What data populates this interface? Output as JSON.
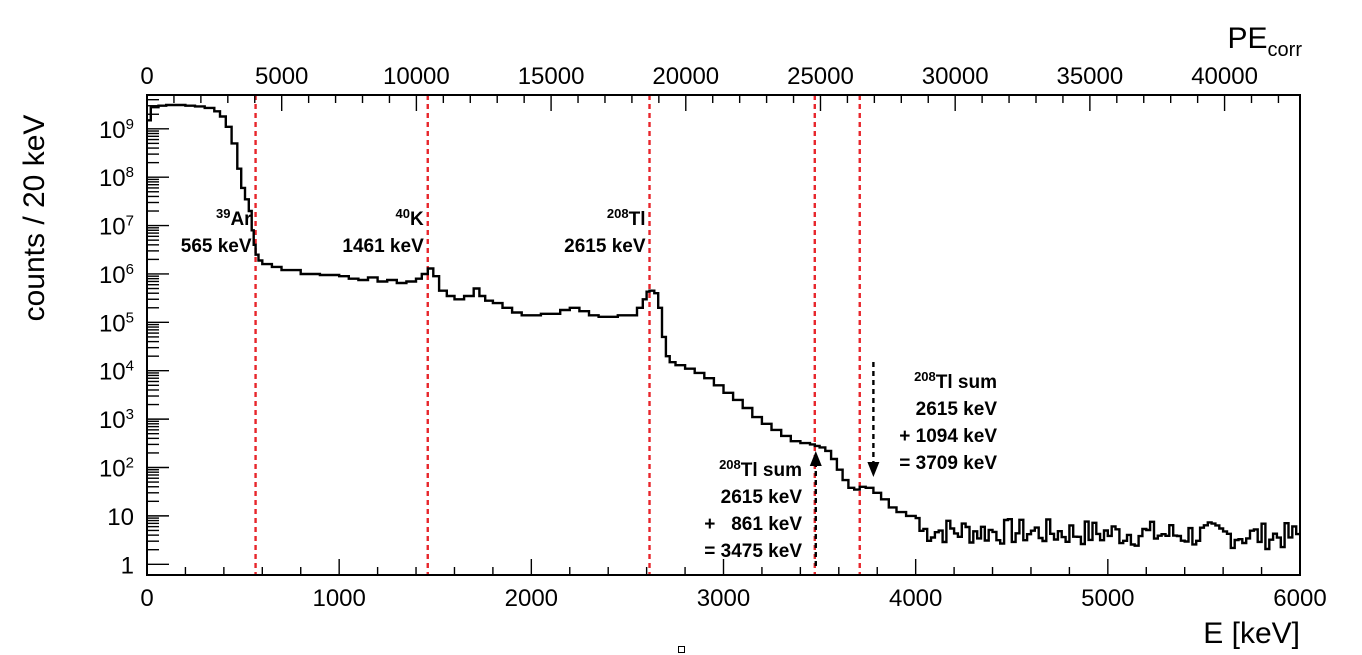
{
  "chart_data": {
    "type": "histogram",
    "ylabel": "counts / 20 keV",
    "xlabel": "E [keV]",
    "x2label": {
      "base": "PE",
      "sub": "corr"
    },
    "xlim": [
      0,
      6000
    ],
    "x2lim": [
      0,
      42800
    ],
    "ylim": [
      0.6,
      5000000000
    ],
    "yscale": "log",
    "x_ticks": [
      0,
      1000,
      2000,
      3000,
      4000,
      5000,
      6000
    ],
    "x2_ticks": [
      0,
      5000,
      10000,
      15000,
      20000,
      25000,
      30000,
      35000,
      40000
    ],
    "y_ticks": [
      {
        "value": 1,
        "label": "1"
      },
      {
        "value": 10,
        "label": "10"
      },
      {
        "value": 100,
        "base": "10",
        "exp": "2"
      },
      {
        "value": 1000,
        "base": "10",
        "exp": "3"
      },
      {
        "value": 10000,
        "base": "10",
        "exp": "4"
      },
      {
        "value": 100000,
        "base": "10",
        "exp": "5"
      },
      {
        "value": 1000000,
        "base": "10",
        "exp": "6"
      },
      {
        "value": 10000000,
        "base": "10",
        "exp": "7"
      },
      {
        "value": 100000000,
        "base": "10",
        "exp": "8"
      },
      {
        "value": 1000000000,
        "base": "10",
        "exp": "9"
      }
    ],
    "reference_lines_keV": [
      565,
      1461,
      2615,
      3475,
      3709
    ],
    "spectrum": {
      "x_keV": [
        0,
        20,
        60,
        100,
        150,
        200,
        250,
        300,
        350,
        380,
        410,
        440,
        470,
        490,
        510,
        530,
        545,
        555,
        565,
        580,
        600,
        650,
        700,
        800,
        900,
        1000,
        1050,
        1100,
        1150,
        1200,
        1250,
        1300,
        1350,
        1400,
        1430,
        1461,
        1490,
        1520,
        1560,
        1600,
        1650,
        1700,
        1730,
        1760,
        1800,
        1850,
        1900,
        1950,
        2000,
        2050,
        2100,
        2150,
        2200,
        2250,
        2300,
        2350,
        2400,
        2450,
        2500,
        2550,
        2580,
        2600,
        2615,
        2640,
        2660,
        2680,
        2700,
        2720,
        2750,
        2800,
        2850,
        2900,
        2950,
        3000,
        3050,
        3100,
        3150,
        3200,
        3250,
        3300,
        3350,
        3400,
        3450,
        3475,
        3500,
        3530,
        3560,
        3590,
        3620,
        3650,
        3680,
        3709,
        3740,
        3780,
        3820,
        3860,
        3900,
        3950,
        4000
      ],
      "counts": [
        1500000000,
        2800000000,
        3000000000,
        3100000000,
        3100000000,
        3000000000,
        2900000000,
        2700000000,
        2300000000,
        1800000000,
        1100000000,
        500000000,
        150000000,
        60000000,
        35000000,
        20000000,
        8000000,
        4000000,
        2500000,
        1900000,
        1600000,
        1400000,
        1200000,
        1000000,
        950000,
        900000,
        800000,
        750000,
        850000,
        700000,
        750000,
        650000,
        700000,
        800000,
        1000000,
        1300000,
        900000,
        450000,
        350000,
        300000,
        350000,
        500000,
        350000,
        280000,
        250000,
        200000,
        160000,
        140000,
        140000,
        150000,
        150000,
        180000,
        200000,
        170000,
        140000,
        130000,
        130000,
        140000,
        140000,
        200000,
        300000,
        430000,
        450000,
        400000,
        200000,
        50000,
        20000,
        15000,
        13000,
        11000,
        9000,
        7000,
        5000,
        3500,
        2500,
        1700,
        1100,
        800,
        600,
        450,
        350,
        320,
        300,
        280,
        260,
        220,
        150,
        90,
        55,
        38,
        35,
        40,
        38,
        30,
        22,
        15,
        12,
        10,
        9
      ]
    },
    "noise_floor": {
      "x_range_keV": [
        4000,
        6000
      ],
      "typical_counts": 5,
      "dip_at_keV": 4750
    },
    "annotations": [
      {
        "iso": "39",
        "elem": "Ar",
        "energy": "565 keV"
      },
      {
        "iso": "40",
        "elem": "K",
        "energy": "1461 keV"
      },
      {
        "iso": "208",
        "elem": "Tl",
        "energy": "2615 keV"
      }
    ],
    "sum_annotations": [
      {
        "iso": "208",
        "elem": "Tl",
        "title": "sum",
        "line1": "2615 keV",
        "line2": "+   861 keV",
        "line3": "= 3475 keV",
        "peak_keV": 3475
      },
      {
        "iso": "208",
        "elem": "Tl",
        "title": "sum",
        "line1": "2615 keV",
        "line2": "+ 1094 keV",
        "line3": "= 3709 keV",
        "peak_keV": 3709
      }
    ],
    "line_color": "#000000",
    "reference_color": "#e8252b"
  }
}
